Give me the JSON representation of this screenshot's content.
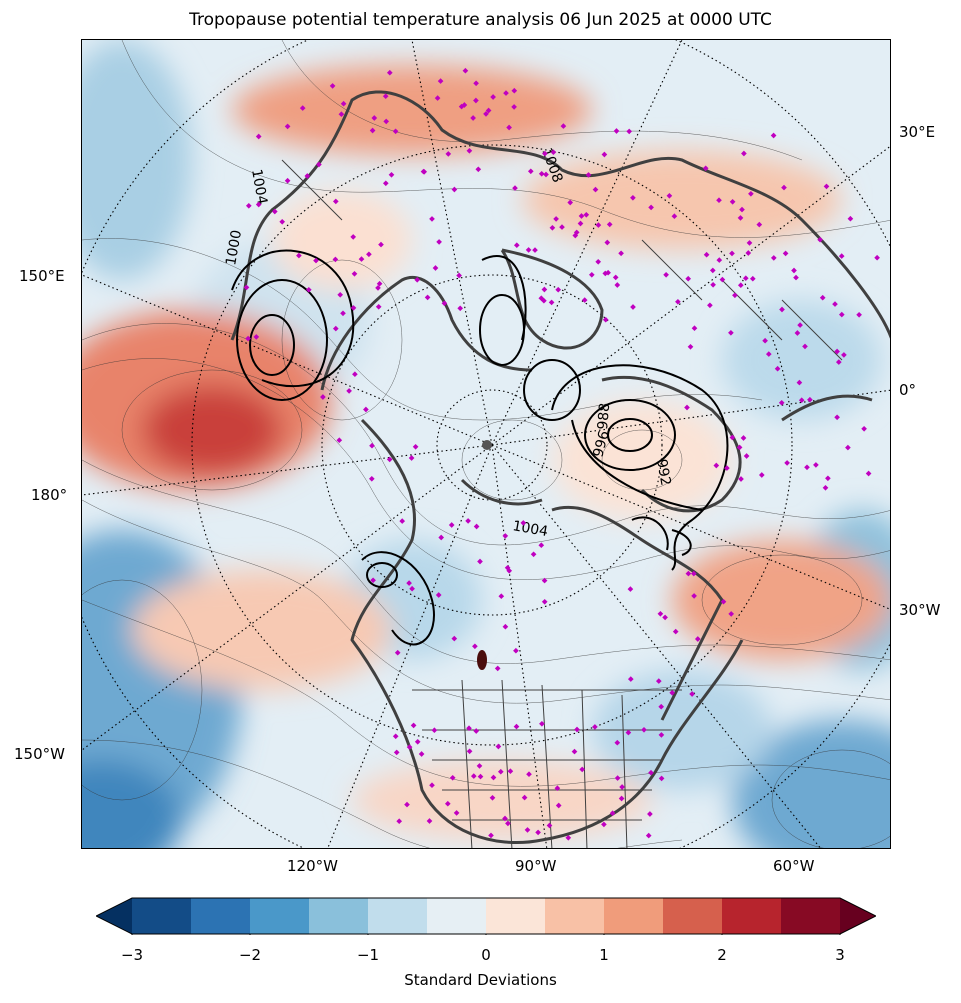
{
  "title": "Tropopause potential temperature analysis 06 Jun 2025 at 0000 UTC",
  "map": {
    "projection": "north-polar-stereographic",
    "longitude_labels_left": [
      "150°E",
      "180°",
      "150°W"
    ],
    "longitude_labels_right": [
      "30°E",
      "0°",
      "30°W"
    ],
    "longitude_labels_bottom": [
      "120°W",
      "90°W",
      "60°W"
    ],
    "pressure_contour_labels": [
      "1004",
      "1008",
      "1000",
      "996",
      "992",
      "988",
      "1004"
    ],
    "station_marker_color": "#c000c0",
    "coastline_color": "#404040",
    "color_scale": "RdBu_r"
  },
  "colorbar": {
    "label": "Standard Deviations",
    "ticks": [
      "−3",
      "−2",
      "−1",
      "0",
      "1",
      "2",
      "3"
    ],
    "range": [
      -3,
      3
    ],
    "extend": "both",
    "colors": [
      "#053061",
      "#134c87",
      "#2c73b3",
      "#4a98c9",
      "#8ac0db",
      "#c1ddec",
      "#e6eff4",
      "#fbe5d8",
      "#f8c1a6",
      "#f09c7b",
      "#d6604d",
      "#b7242d",
      "#870a24",
      "#67001f"
    ]
  }
}
